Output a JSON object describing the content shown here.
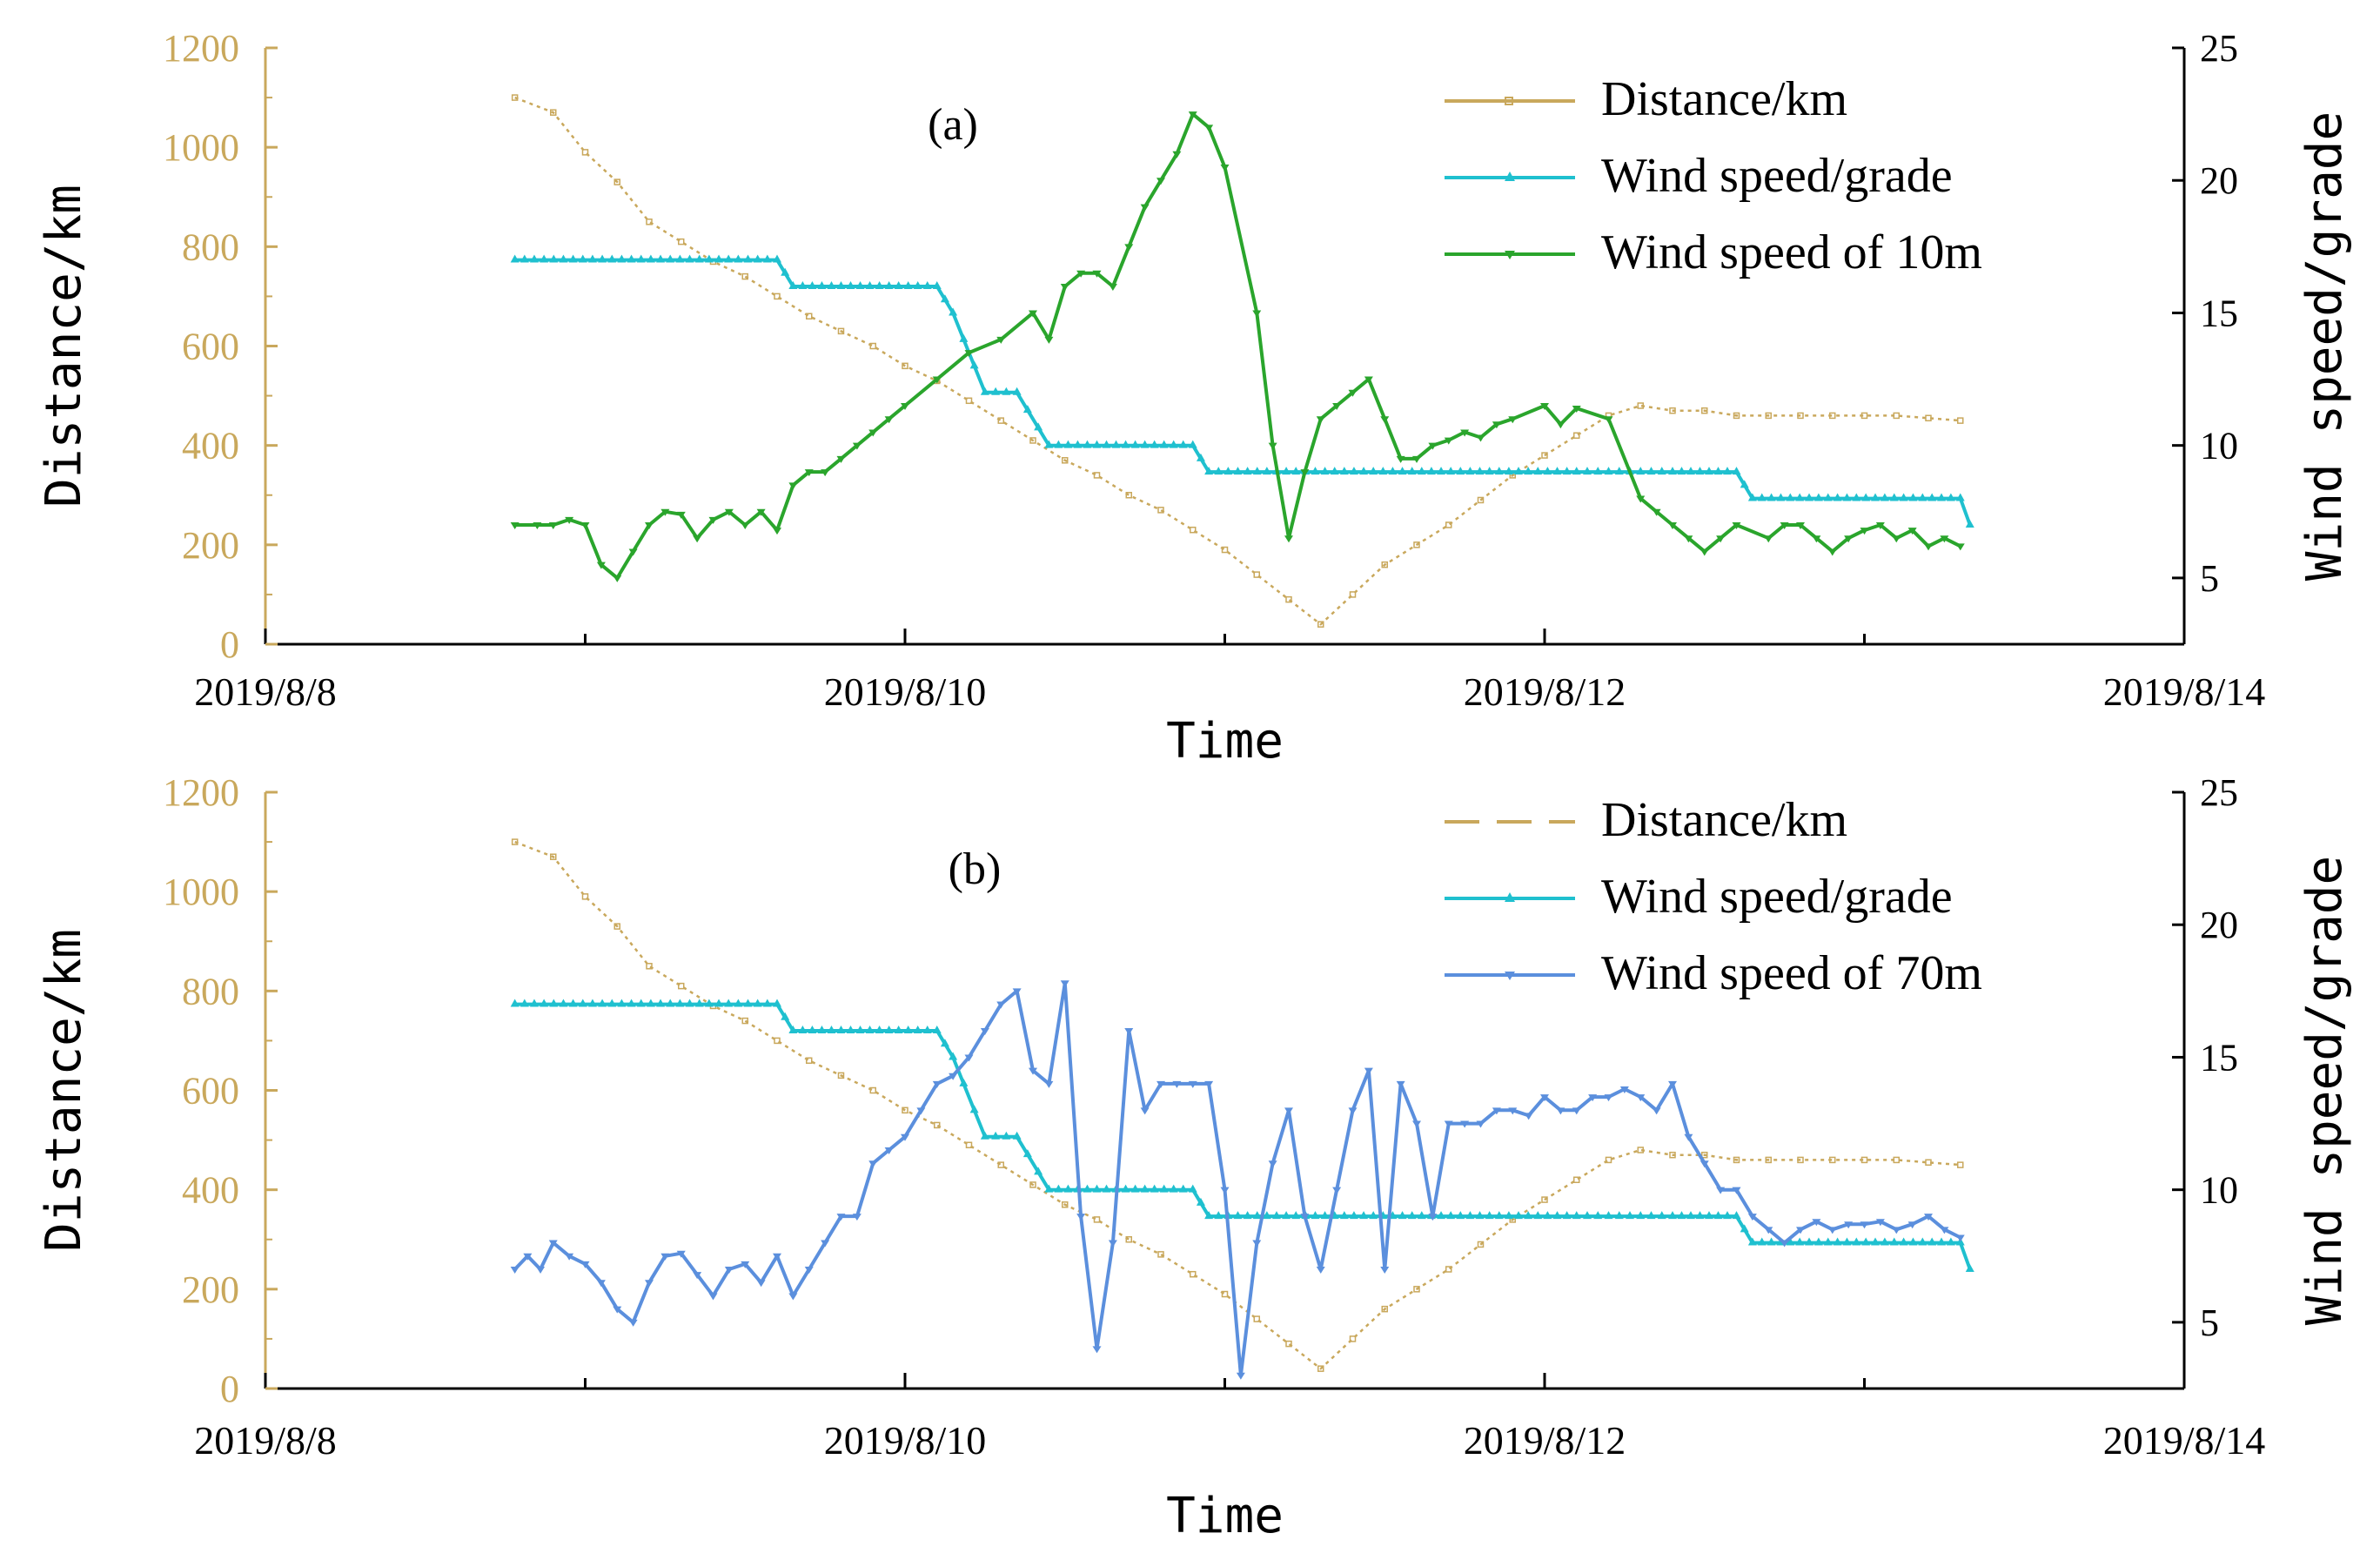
{
  "colors": {
    "distance": "#C9A85C",
    "grade": "#1FC0CF",
    "wind10": "#2AA52C",
    "wind70": "#5B8FDD",
    "axis": "#000000",
    "left_tick": "#C9A85C"
  },
  "chart_data": [
    {
      "type": "line",
      "panel_label": "(a)",
      "xlabel": "Time",
      "ylabel_left": "Distance/km",
      "ylabel_right": "Wind speed/grade",
      "x_ticks": [
        "2019/8/8",
        "2019/8/10",
        "2019/8/12",
        "2019/8/14"
      ],
      "y_left_ticks": [
        "0",
        "200",
        "400",
        "600",
        "800",
        "1000",
        "1200"
      ],
      "y_right_ticks": [
        "5",
        "10",
        "15",
        "20",
        "25"
      ],
      "xlim": [
        0,
        6
      ],
      "ylim_left": [
        0,
        1200
      ],
      "ylim_right": [
        2.5,
        25
      ],
      "legend": [
        "Distance/km",
        "Wind speed/grade",
        "Wind speed of 10m"
      ],
      "series": [
        {
          "name": "Distance/km",
          "axis": "left",
          "style": "dotted",
          "x": [
            0.78,
            0.9,
            1.0,
            1.1,
            1.2,
            1.3,
            1.4,
            1.5,
            1.6,
            1.7,
            1.8,
            1.9,
            2.0,
            2.1,
            2.2,
            2.3,
            2.4,
            2.5,
            2.6,
            2.7,
            2.8,
            2.9,
            3.0,
            3.1,
            3.2,
            3.3,
            3.4,
            3.5,
            3.6,
            3.7,
            3.8,
            3.9,
            4.0,
            4.1,
            4.2,
            4.3,
            4.4,
            4.5,
            4.6,
            4.7,
            4.8,
            4.9,
            5.0,
            5.1,
            5.2,
            5.3
          ],
          "values": [
            1100,
            1070,
            990,
            930,
            850,
            810,
            770,
            740,
            700,
            660,
            630,
            600,
            560,
            530,
            490,
            450,
            410,
            370,
            340,
            300,
            270,
            230,
            190,
            140,
            90,
            40,
            100,
            160,
            200,
            240,
            290,
            340,
            380,
            420,
            460,
            480,
            470,
            470,
            460,
            460,
            460,
            460,
            460,
            460,
            455,
            450
          ]
        },
        {
          "name": "Wind speed/grade",
          "axis": "right",
          "style": "triangle",
          "x": [
            0.78,
            1.6,
            1.65,
            2.1,
            2.15,
            2.25,
            2.35,
            2.45,
            2.9,
            2.95,
            4.1,
            4.2,
            4.3,
            4.4,
            4.6,
            4.65,
            5.3,
            5.33
          ],
          "values": [
            17,
            17,
            16,
            16,
            15,
            12,
            12,
            10,
            10,
            9,
            9,
            9,
            9,
            9,
            9,
            8,
            8,
            7
          ]
        },
        {
          "name": "Wind speed of 10m",
          "axis": "right",
          "style": "solid",
          "x": [
            0.78,
            0.85,
            0.9,
            0.95,
            1.0,
            1.05,
            1.1,
            1.15,
            1.2,
            1.25,
            1.3,
            1.35,
            1.4,
            1.45,
            1.5,
            1.55,
            1.6,
            1.65,
            1.7,
            1.75,
            1.8,
            1.85,
            1.9,
            1.95,
            2.0,
            2.1,
            2.2,
            2.3,
            2.4,
            2.45,
            2.5,
            2.55,
            2.6,
            2.65,
            2.7,
            2.75,
            2.8,
            2.85,
            2.9,
            2.95,
            3.0,
            3.1,
            3.15,
            3.2,
            3.25,
            3.3,
            3.35,
            3.4,
            3.45,
            3.5,
            3.55,
            3.6,
            3.65,
            3.7,
            3.75,
            3.8,
            3.85,
            3.9,
            4.0,
            4.05,
            4.1,
            4.2,
            4.3,
            4.35,
            4.4,
            4.45,
            4.5,
            4.55,
            4.6,
            4.7,
            4.75,
            4.8,
            4.85,
            4.9,
            4.95,
            5.0,
            5.05,
            5.1,
            5.15,
            5.2,
            5.25,
            5.3
          ],
          "values": [
            7,
            7,
            7,
            7.2,
            7,
            5.5,
            5,
            6,
            7,
            7.5,
            7.4,
            6.5,
            7.2,
            7.5,
            7,
            7.5,
            6.8,
            8.5,
            9,
            9,
            9.5,
            10,
            10.5,
            11,
            11.5,
            12.5,
            13.5,
            14,
            15,
            14,
            16,
            16.5,
            16.5,
            16,
            17.5,
            19,
            20,
            21,
            22.5,
            22,
            20.5,
            15,
            10,
            6.5,
            9,
            11,
            11.5,
            12,
            12.5,
            11,
            9.5,
            9.5,
            10,
            10.2,
            10.5,
            10.3,
            10.8,
            11,
            11.5,
            10.8,
            11.4,
            11,
            8,
            7.5,
            7,
            6.5,
            6,
            6.5,
            7,
            6.5,
            7,
            7,
            6.5,
            6,
            6.5,
            6.8,
            7,
            6.5,
            6.8,
            6.2,
            6.5,
            6.2
          ]
        }
      ]
    },
    {
      "type": "line",
      "panel_label": "(b)",
      "xlabel": "Time",
      "ylabel_left": "Distance/km",
      "ylabel_right": "Wind speed/grade",
      "x_ticks": [
        "2019/8/8",
        "2019/8/10",
        "2019/8/12",
        "2019/8/14"
      ],
      "y_left_ticks": [
        "0",
        "200",
        "400",
        "600",
        "800",
        "1000",
        "1200"
      ],
      "y_right_ticks": [
        "5",
        "10",
        "15",
        "20",
        "25"
      ],
      "xlim": [
        0,
        6
      ],
      "ylim_left": [
        0,
        1200
      ],
      "ylim_right": [
        2.5,
        25
      ],
      "legend": [
        "Distance/km",
        "Wind speed/grade",
        "Wind speed of 70m"
      ],
      "series": [
        {
          "name": "Distance/km",
          "axis": "left",
          "style": "dotted",
          "x": [
            0.78,
            0.9,
            1.0,
            1.1,
            1.2,
            1.3,
            1.4,
            1.5,
            1.6,
            1.7,
            1.8,
            1.9,
            2.0,
            2.1,
            2.2,
            2.3,
            2.4,
            2.5,
            2.6,
            2.7,
            2.8,
            2.9,
            3.0,
            3.1,
            3.2,
            3.3,
            3.4,
            3.5,
            3.6,
            3.7,
            3.8,
            3.9,
            4.0,
            4.1,
            4.2,
            4.3,
            4.4,
            4.5,
            4.6,
            4.7,
            4.8,
            4.9,
            5.0,
            5.1,
            5.2,
            5.3
          ],
          "values": [
            1100,
            1070,
            990,
            930,
            850,
            810,
            770,
            740,
            700,
            660,
            630,
            600,
            560,
            530,
            490,
            450,
            410,
            370,
            340,
            300,
            270,
            230,
            190,
            140,
            90,
            40,
            100,
            160,
            200,
            240,
            290,
            340,
            380,
            420,
            460,
            480,
            470,
            470,
            460,
            460,
            460,
            460,
            460,
            460,
            455,
            450
          ]
        },
        {
          "name": "Wind speed/grade",
          "axis": "right",
          "style": "triangle",
          "x": [
            0.78,
            1.6,
            1.65,
            2.1,
            2.15,
            2.25,
            2.35,
            2.45,
            2.9,
            2.95,
            4.1,
            4.2,
            4.3,
            4.4,
            4.6,
            4.65,
            5.3,
            5.33
          ],
          "values": [
            17,
            17,
            16,
            16,
            15,
            12,
            12,
            10,
            10,
            9,
            9,
            9,
            9,
            9,
            9,
            8,
            8,
            7
          ]
        },
        {
          "name": "Wind speed of 70m",
          "axis": "right",
          "style": "solid",
          "x": [
            0.78,
            0.82,
            0.86,
            0.9,
            0.95,
            1.0,
            1.05,
            1.1,
            1.15,
            1.2,
            1.25,
            1.3,
            1.35,
            1.4,
            1.45,
            1.5,
            1.55,
            1.6,
            1.65,
            1.7,
            1.75,
            1.8,
            1.85,
            1.9,
            1.95,
            2.0,
            2.05,
            2.1,
            2.15,
            2.2,
            2.25,
            2.3,
            2.35,
            2.4,
            2.45,
            2.5,
            2.55,
            2.6,
            2.65,
            2.7,
            2.75,
            2.8,
            2.85,
            2.9,
            2.95,
            3.0,
            3.05,
            3.1,
            3.15,
            3.2,
            3.25,
            3.3,
            3.35,
            3.4,
            3.45,
            3.5,
            3.55,
            3.6,
            3.65,
            3.7,
            3.75,
            3.8,
            3.85,
            3.9,
            3.95,
            4.0,
            4.05,
            4.1,
            4.15,
            4.2,
            4.25,
            4.3,
            4.35,
            4.4,
            4.45,
            4.5,
            4.55,
            4.6,
            4.65,
            4.7,
            4.75,
            4.8,
            4.85,
            4.9,
            4.95,
            5.0,
            5.05,
            5.1,
            5.15,
            5.2,
            5.25,
            5.3
          ],
          "values": [
            7,
            7.5,
            7,
            8,
            7.5,
            7.2,
            6.5,
            5.5,
            5,
            6.5,
            7.5,
            7.6,
            6.8,
            6,
            7,
            7.2,
            6.5,
            7.5,
            6,
            7,
            8,
            9,
            9,
            11,
            11.5,
            12,
            13,
            14,
            14.3,
            15,
            16,
            17,
            17.5,
            14.5,
            14,
            17.8,
            9,
            4,
            8,
            16,
            13,
            14,
            14,
            14,
            14,
            10,
            3,
            8,
            11,
            13,
            9,
            7,
            10,
            13,
            14.5,
            7,
            14,
            12.5,
            9,
            12.5,
            12.5,
            12.5,
            13,
            13,
            12.8,
            13.5,
            13,
            13,
            13.5,
            13.5,
            13.8,
            13.5,
            13,
            14,
            12,
            11,
            10,
            10,
            9,
            8.5,
            8,
            8.5,
            8.8,
            8.5,
            8.7,
            8.7,
            8.8,
            8.5,
            8.7,
            9,
            8.5,
            8.2
          ]
        }
      ]
    }
  ]
}
